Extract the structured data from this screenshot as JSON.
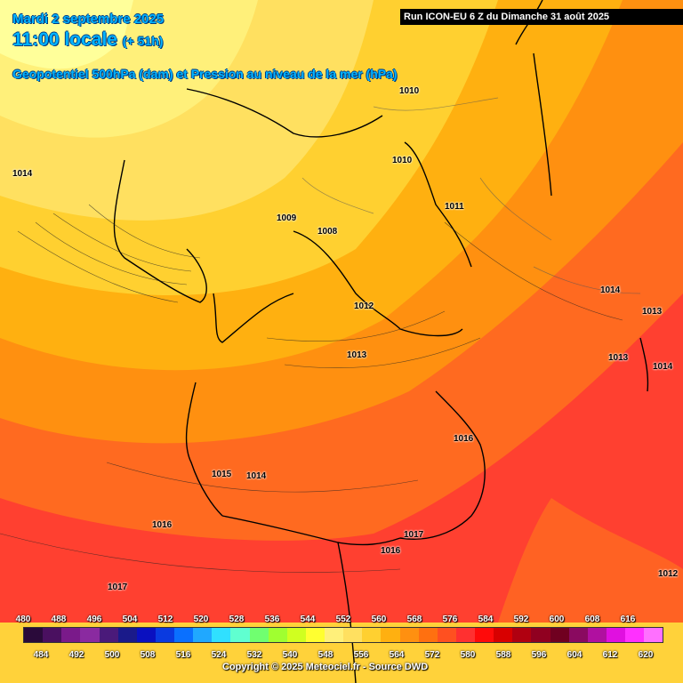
{
  "header": {
    "date": "Mardi 2 septembre 2025",
    "time": "11:00 locale",
    "offset": "(+ 51h)",
    "parameter": "Geopotentiel 500hPa (dam) et Pression au niveau de la mer (hPa)",
    "run": "Run ICON-EU 6 Z du Dimanche 31 août 2025"
  },
  "pressure_labels": [
    "1014",
    "1010",
    "1010",
    "1009",
    "1008",
    "1011",
    "1012",
    "1013",
    "1014",
    "1013",
    "1013",
    "1014",
    "1016",
    "1015",
    "1014",
    "1016",
    "1017",
    "1016",
    "1017",
    "1012"
  ],
  "legend": {
    "top_ticks": [
      "480",
      "488",
      "496",
      "504",
      "512",
      "520",
      "528",
      "536",
      "544",
      "552",
      "560",
      "568",
      "576",
      "584",
      "592",
      "600",
      "608",
      "616"
    ],
    "bottom_ticks": [
      "484",
      "492",
      "500",
      "508",
      "516",
      "524",
      "532",
      "540",
      "548",
      "556",
      "564",
      "572",
      "580",
      "588",
      "596",
      "604",
      "612",
      "620"
    ],
    "colors": [
      "#2a0a3a",
      "#4a1060",
      "#7a1a8a",
      "#8a2aa0",
      "#4a1a7a",
      "#1a1a8a",
      "#0a10c0",
      "#0a3ae0",
      "#0a70ff",
      "#20a8ff",
      "#30e0ff",
      "#60ffd0",
      "#70ff70",
      "#a0ff30",
      "#d0ff20",
      "#ffff30",
      "#fff07a",
      "#ffe060",
      "#ffd030",
      "#ffb010",
      "#ff9010",
      "#ff7010",
      "#ff5020",
      "#ff3030",
      "#ff0a0a",
      "#d80000",
      "#b00010",
      "#900020",
      "#700020",
      "#8a0a60",
      "#b010a0",
      "#e010e0",
      "#ff30ff",
      "#ff70ff"
    ]
  },
  "copyright": "Copyright © 2025 Meteociel.fr - Source DWD"
}
